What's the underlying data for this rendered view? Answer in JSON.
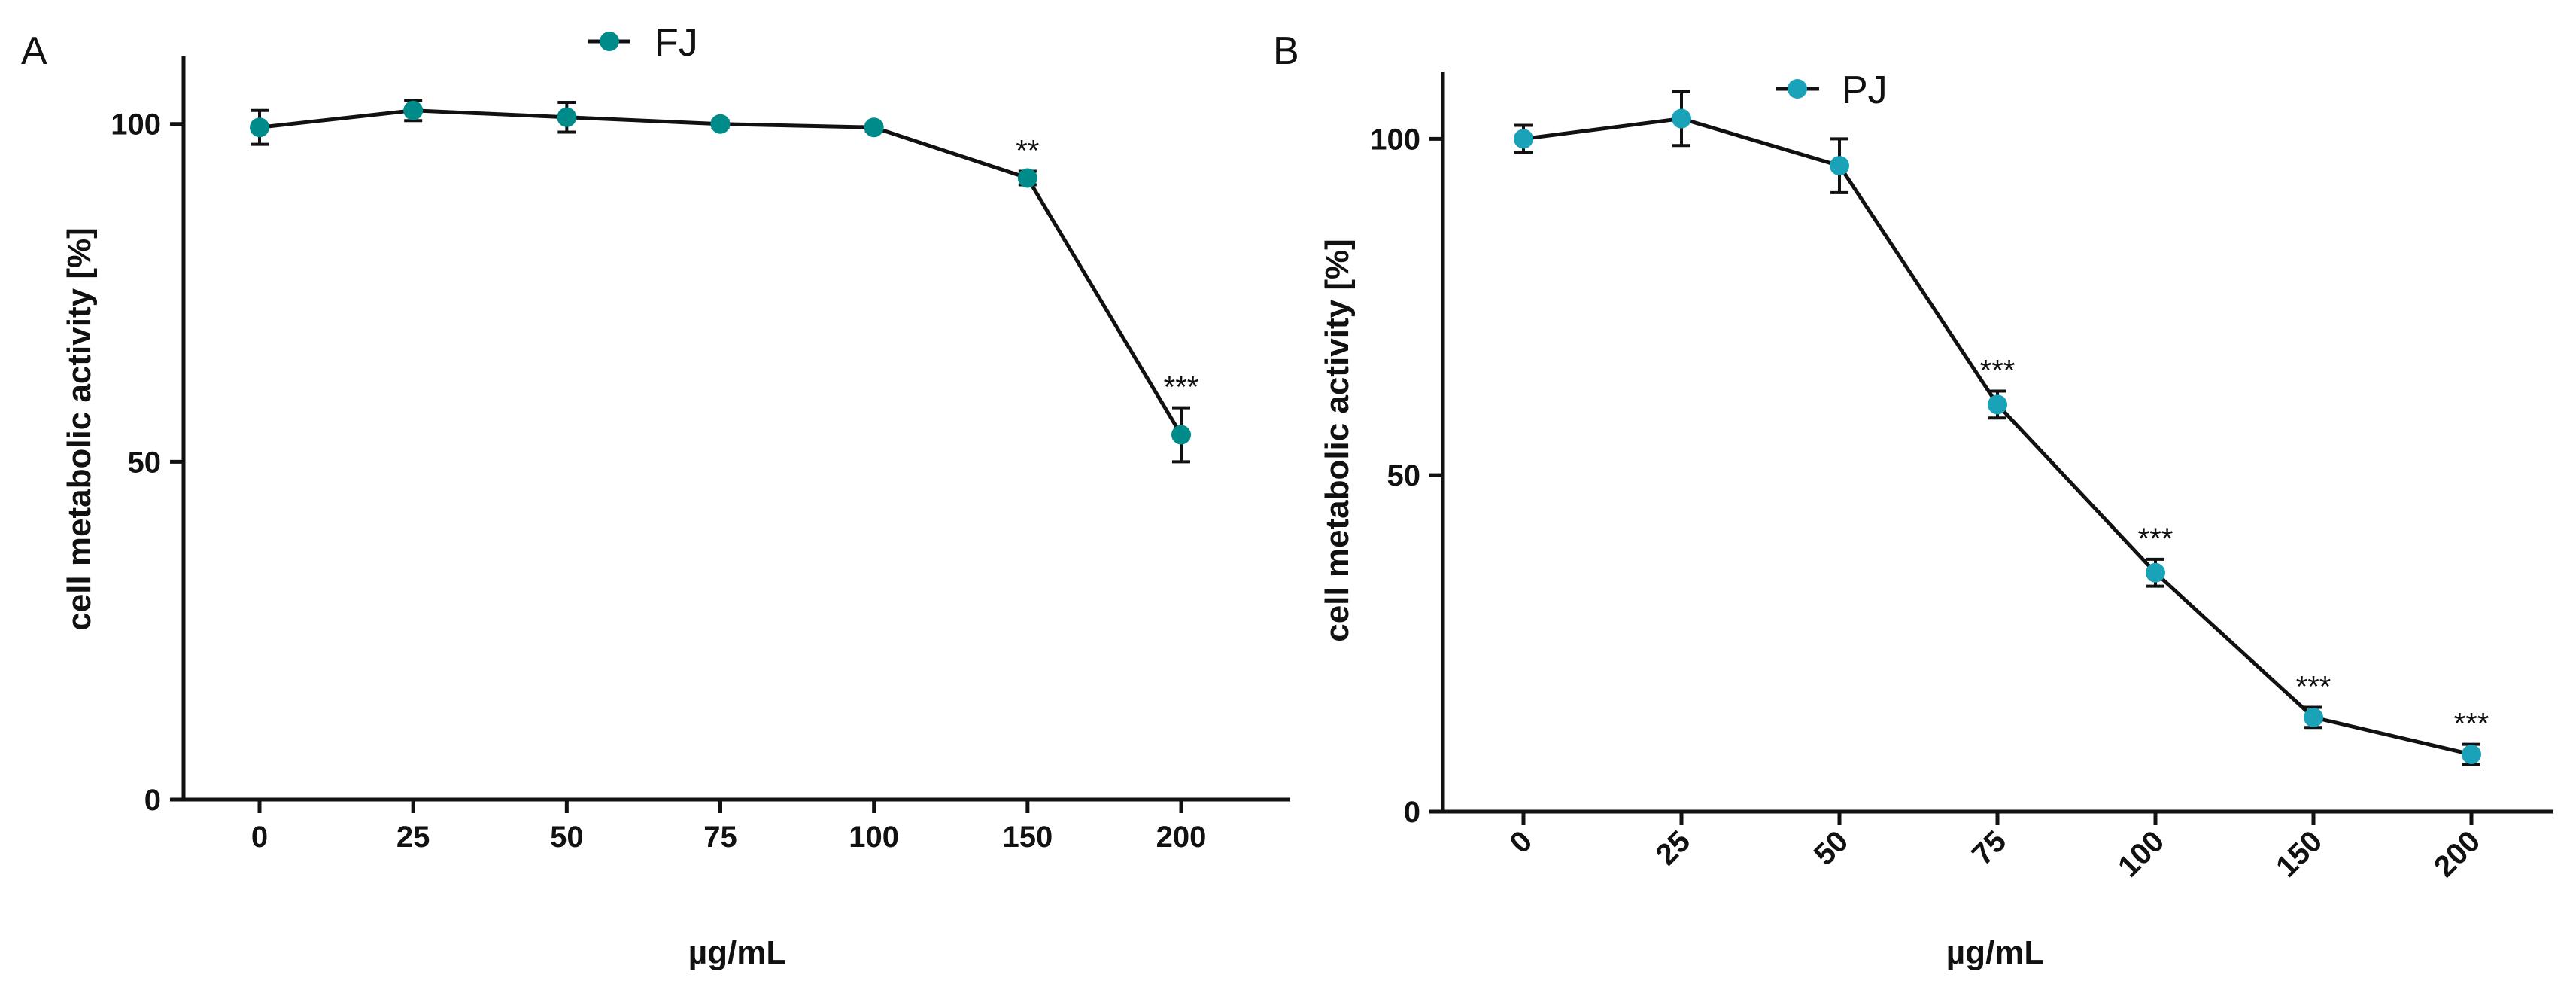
{
  "chart_data": [
    {
      "type": "line",
      "panel_label": "A",
      "legend": [
        "FJ"
      ],
      "xlabel": "µg/mL",
      "ylabel": "cell metabolic activity [%]",
      "categories": [
        "0",
        "25",
        "50",
        "75",
        "100",
        "150",
        "200"
      ],
      "yticks": [
        "0",
        "50",
        "100"
      ],
      "ylim": [
        0,
        110
      ],
      "series": [
        {
          "name": "FJ",
          "color": "#008b8b",
          "values": [
            99.5,
            102,
            101,
            100,
            99.5,
            92,
            54
          ],
          "errors": [
            2.5,
            1.5,
            2.2,
            0.5,
            0.5,
            1.0,
            4.0
          ],
          "annotations": [
            "",
            "",
            "",
            "",
            "",
            "**",
            "***"
          ]
        }
      ]
    },
    {
      "type": "line",
      "panel_label": "B",
      "legend": [
        "PJ"
      ],
      "xlabel": "µg/mL",
      "ylabel": "cell metabolic activity [%]",
      "categories": [
        "0",
        "25",
        "50",
        "75",
        "100",
        "150",
        "200"
      ],
      "yticks": [
        "0",
        "50",
        "100"
      ],
      "ylim": [
        0,
        110
      ],
      "rotate_ticks": true,
      "series": [
        {
          "name": "PJ",
          "color": "#1aa3b8",
          "values": [
            100,
            103,
            96,
            60.5,
            35.5,
            14,
            8.5
          ],
          "errors": [
            2.0,
            4.0,
            4.0,
            2.0,
            2.0,
            1.5,
            1.5
          ],
          "annotations": [
            "",
            "",
            "",
            "***",
            "***",
            "***",
            "***"
          ]
        }
      ]
    }
  ]
}
